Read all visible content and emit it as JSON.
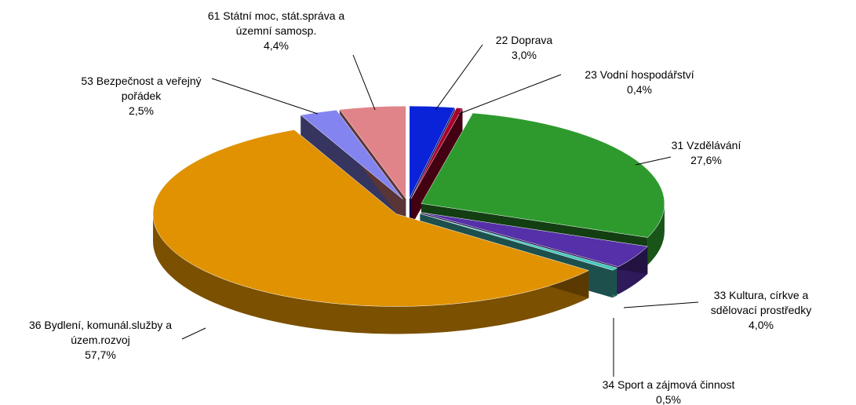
{
  "chart_data": {
    "type": "pie3d",
    "categories": [
      "22 Doprava",
      "23 Vodní hospodářství",
      "31 Vzdělávání",
      "33 Kultura, církve a sdělovací prostředky",
      "34 Sport a zájmová činnost",
      "36 Bydlení, komunál.služby a územ.rozvoj",
      "53 Bezpečnost a veřejný pořádek",
      "61 Státní moc, stát.správa a územní samosp."
    ],
    "values": [
      3.0,
      0.4,
      27.6,
      4.0,
      0.5,
      57.7,
      2.5,
      4.4
    ],
    "value_labels": [
      "3,0%",
      "0,4%",
      "27,6%",
      "4,0%",
      "0,5%",
      "57,7%",
      "2,5%",
      "4,4%"
    ],
    "colors": [
      "#0a22d8",
      "#a8002c",
      "#2e9a2e",
      "#5530a8",
      "#48c8c0",
      "#e09200",
      "#8484f0",
      "#e0848a"
    ]
  }
}
